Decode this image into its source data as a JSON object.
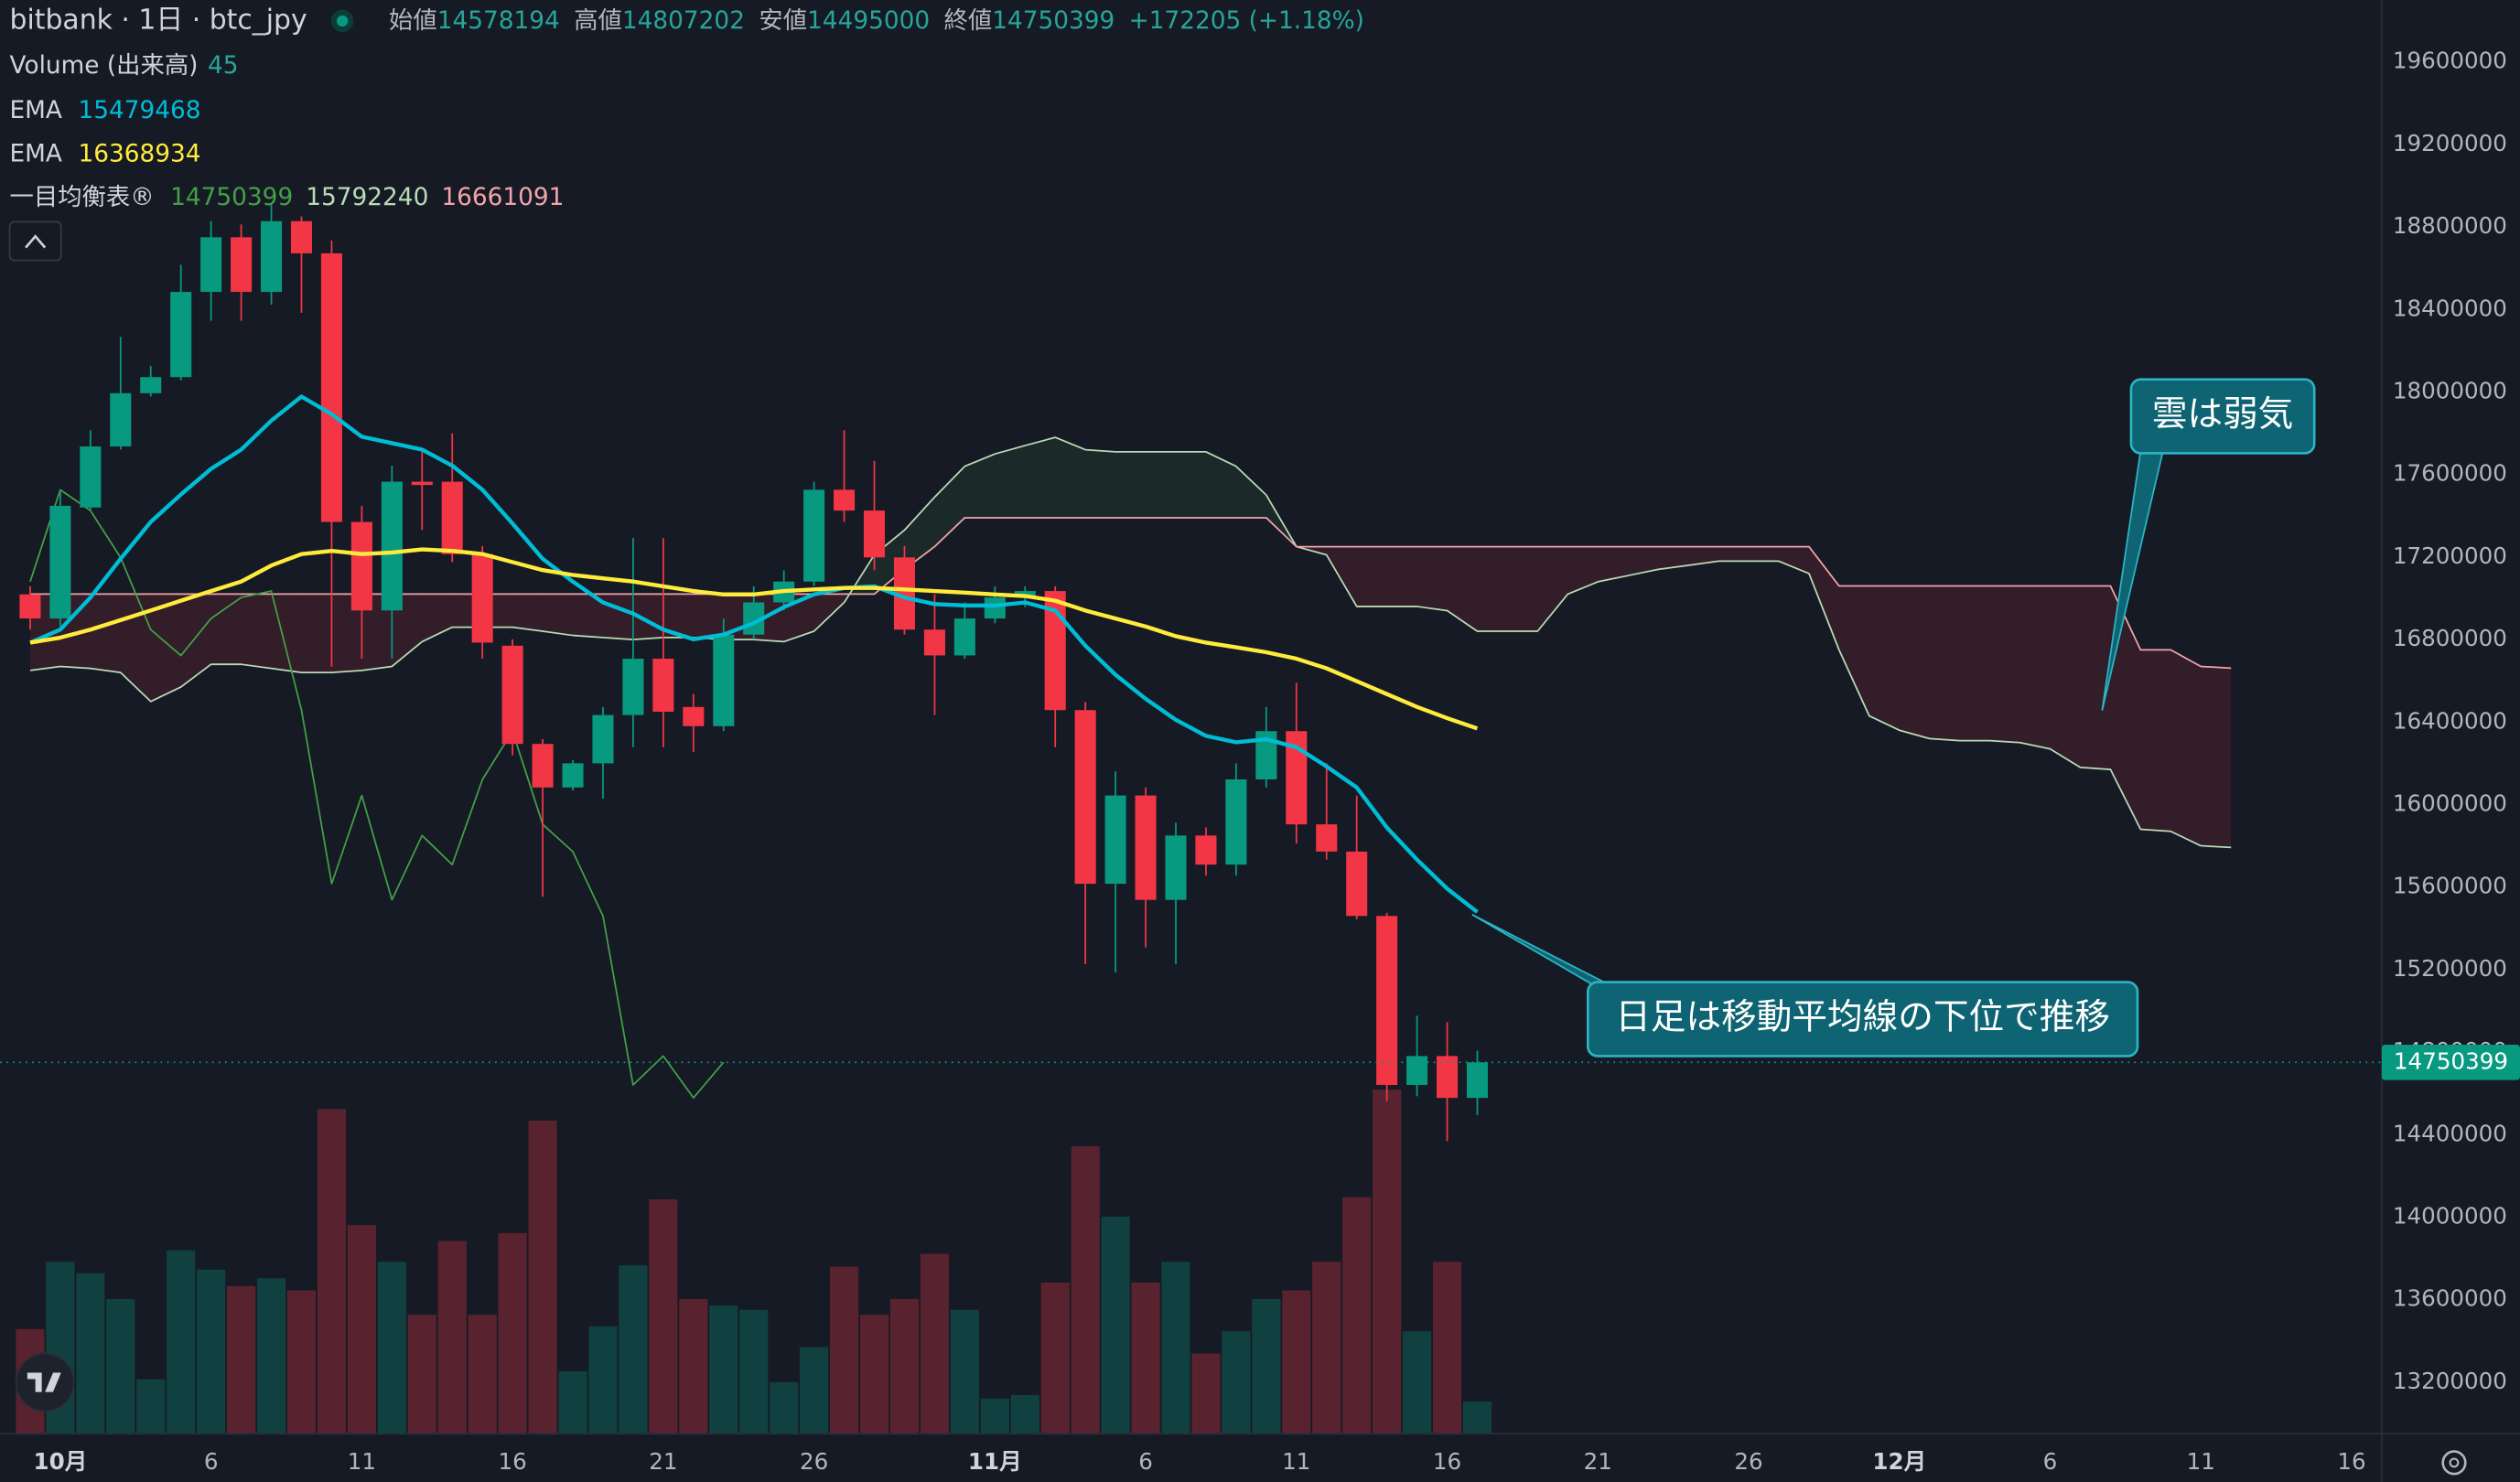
{
  "header": {
    "title": "bitbank · 1日 · btc_jpy",
    "ohlc_labels": [
      "始値",
      "高値",
      "安値",
      "終値"
    ],
    "change": {
      "value": 172205,
      "label": "+172205 (+1.18%)"
    }
  },
  "chart_data": {
    "type": "candlestick",
    "x": [
      "09-30",
      "10-01",
      "10-02",
      "10-03",
      "10-04",
      "10-05",
      "10-06",
      "10-07",
      "10-08",
      "10-09",
      "10-10",
      "10-11",
      "10-12",
      "10-13",
      "10-14",
      "10-15",
      "10-16",
      "10-17",
      "10-18",
      "10-19",
      "10-20",
      "10-21",
      "10-22",
      "10-23",
      "10-24",
      "10-25",
      "10-26",
      "10-27",
      "10-28",
      "10-29",
      "10-30",
      "10-31",
      "11-01",
      "11-02",
      "11-03",
      "11-04",
      "11-05",
      "11-06",
      "11-07",
      "11-08",
      "11-09",
      "11-10",
      "11-11",
      "11-12",
      "11-13",
      "11-14",
      "11-15",
      "11-16",
      "11-17",
      "11-18",
      "11-19",
      "11-20",
      "11-21",
      "11-22",
      "11-23",
      "11-24",
      "11-25",
      "11-26",
      "11-27",
      "11-28",
      "11-29",
      "11-30",
      "12-01",
      "12-02",
      "12-03",
      "12-04",
      "12-05",
      "12-06",
      "12-07",
      "12-08",
      "12-09",
      "12-10",
      "12-11",
      "12-12"
    ],
    "xlim": [
      "09-29",
      "12-17"
    ],
    "xticks": [
      {
        "value": "10-01",
        "label": "10月"
      },
      {
        "value": "10-06",
        "label": "6"
      },
      {
        "value": "10-11",
        "label": "11"
      },
      {
        "value": "10-16",
        "label": "16"
      },
      {
        "value": "10-21",
        "label": "21"
      },
      {
        "value": "10-26",
        "label": "26"
      },
      {
        "value": "11-01",
        "label": "11月"
      },
      {
        "value": "11-06",
        "label": "6"
      },
      {
        "value": "11-11",
        "label": "11"
      },
      {
        "value": "11-16",
        "label": "16"
      },
      {
        "value": "11-21",
        "label": "21"
      },
      {
        "value": "11-26",
        "label": "26"
      },
      {
        "value": "12-01",
        "label": "12月"
      },
      {
        "value": "12-06",
        "label": "6"
      },
      {
        "value": "12-11",
        "label": "11"
      },
      {
        "value": "12-16",
        "label": "16"
      }
    ],
    "ylim": [
      12950000,
      19900000
    ],
    "yticks": [
      13200000,
      13600000,
      14000000,
      14400000,
      14800000,
      15200000,
      15600000,
      16000000,
      16400000,
      16800000,
      17200000,
      17600000,
      18000000,
      18400000,
      18800000,
      19200000,
      19600000
    ],
    "grid": false,
    "colors": {
      "up": "#089981",
      "down": "#f23645"
    },
    "open": [
      17019000,
      16902000,
      17440000,
      17736000,
      17994000,
      18072000,
      18485000,
      18750000,
      18485000,
      18828000,
      18672000,
      17370000,
      16941000,
      17565000,
      17565000,
      17214000,
      16770000,
      16294000,
      16083000,
      16200000,
      16434000,
      16707000,
      16473000,
      16380000,
      16824000,
      16980000,
      17081000,
      17526000,
      17425000,
      17198000,
      16848000,
      16723000,
      16902000,
      17004000,
      17035000,
      16458000,
      15616000,
      16044000,
      15538000,
      15850000,
      15709000,
      16122000,
      16356000,
      15904000,
      15772000,
      15460000,
      14641000,
      14781000,
      14578194,
      null,
      null,
      null,
      null,
      null,
      null,
      null,
      null,
      null,
      null,
      null,
      null,
      null,
      null,
      null,
      null,
      null,
      null,
      null,
      null,
      null,
      null,
      null,
      null,
      null
    ],
    "high": [
      17058000,
      17526000,
      17814000,
      18267000,
      18126000,
      18617000,
      18828000,
      18812000,
      18906000,
      18851000,
      18734000,
      17448000,
      17643000,
      17721000,
      17799000,
      17253000,
      16801000,
      16317000,
      16216000,
      16473000,
      17292000,
      17292000,
      16536000,
      16902000,
      17058000,
      17136000,
      17565000,
      17814000,
      17666000,
      17253000,
      17019000,
      16980000,
      17058000,
      17058000,
      17058000,
      16497000,
      16161000,
      16083000,
      15912000,
      15889000,
      16200000,
      16473000,
      16590000,
      16200000,
      16044000,
      15475000,
      14976000,
      14945000,
      14807202,
      null,
      null,
      null,
      null,
      null,
      null,
      null,
      null,
      null,
      null,
      null,
      null,
      null,
      null,
      null,
      null,
      null,
      null,
      null,
      null,
      null,
      null,
      null,
      null,
      null
    ],
    "low": [
      16848000,
      16863000,
      17425000,
      17721000,
      17978000,
      18056000,
      18345000,
      18345000,
      18423000,
      18384000,
      16668000,
      16707000,
      16707000,
      17331000,
      17175000,
      16707000,
      16239000,
      15553000,
      16068000,
      16029000,
      16278000,
      16278000,
      16255000,
      16356000,
      16801000,
      16941000,
      17058000,
      17370000,
      17136000,
      16824000,
      16434000,
      16707000,
      16879000,
      16957000,
      16278000,
      15226000,
      15187000,
      15307000,
      15226000,
      15655000,
      15655000,
      16083000,
      15811000,
      15733000,
      15444000,
      14563000,
      14586000,
      14368000,
      14495000,
      null,
      null,
      null,
      null,
      null,
      null,
      null,
      null,
      null,
      null,
      null,
      null,
      null,
      null,
      null,
      null,
      null,
      null,
      null,
      null,
      null,
      null,
      null,
      null,
      null
    ],
    "close": [
      16902000,
      17448000,
      17736000,
      17994000,
      18072000,
      18485000,
      18750000,
      18485000,
      18828000,
      18672000,
      17370000,
      16941000,
      17565000,
      17549000,
      17214000,
      16785000,
      16294000,
      16083000,
      16200000,
      16434000,
      16707000,
      16450000,
      16380000,
      16824000,
      16980000,
      17081000,
      17526000,
      17425000,
      17198000,
      16848000,
      16723000,
      16902000,
      17004000,
      17035000,
      16458000,
      15616000,
      16044000,
      15538000,
      15850000,
      15709000,
      16122000,
      16356000,
      15904000,
      15772000,
      15460000,
      14641000,
      14781000,
      14578194,
      14750399,
      null,
      null,
      null,
      null,
      null,
      null,
      null,
      null,
      null,
      null,
      null,
      null,
      null,
      null,
      null,
      null,
      null,
      null,
      null,
      null,
      null,
      null,
      null,
      null,
      null
    ],
    "volume": {
      "name": "Volume (出来高)",
      "ylim": [
        0,
        2000
      ],
      "values": [
        146,
        240,
        224,
        188,
        76,
        256,
        229,
        206,
        217,
        200,
        453,
        291,
        240,
        166,
        269,
        166,
        280,
        437,
        87,
        150,
        235,
        327,
        188,
        179,
        173,
        72,
        121,
        233,
        166,
        188,
        251,
        173,
        49,
        54,
        211,
        401,
        303,
        211,
        240,
        112,
        143,
        188,
        200,
        240,
        330,
        480,
        143,
        240,
        45,
        null,
        null,
        null,
        null,
        null,
        null,
        null,
        null,
        null,
        null,
        null,
        null,
        null,
        null,
        null,
        null,
        null,
        null,
        null,
        null,
        null,
        null,
        null,
        null,
        null
      ]
    },
    "series": [
      {
        "name": "EMA",
        "color": "#00bcd4",
        "values": [
          16785000,
          16848000,
          17004000,
          17191000,
          17370000,
          17503000,
          17627000,
          17721000,
          17861000,
          17978000,
          17892000,
          17783000,
          17752000,
          17721000,
          17643000,
          17526000,
          17362000,
          17191000,
          17081000,
          16980000,
          16926000,
          16848000,
          16801000,
          16824000,
          16879000,
          16957000,
          17019000,
          17050000,
          17058000,
          17004000,
          16972000,
          16965000,
          16965000,
          16980000,
          16941000,
          16770000,
          16629000,
          16512000,
          16411000,
          16333000,
          16302000,
          16317000,
          16278000,
          16185000,
          16083000,
          15889000,
          15733000,
          15592000,
          15479468,
          null,
          null,
          null,
          null,
          null,
          null,
          null,
          null,
          null,
          null,
          null,
          null,
          null,
          null,
          null,
          null,
          null,
          null,
          null,
          null,
          null,
          null,
          null,
          null,
          null
        ]
      },
      {
        "name": "EMA",
        "color": "#ffeb3b",
        "values": [
          16785000,
          16809000,
          16848000,
          16894000,
          16941000,
          16988000,
          17035000,
          17081000,
          17159000,
          17214000,
          17230000,
          17214000,
          17222000,
          17237000,
          17230000,
          17214000,
          17175000,
          17136000,
          17113000,
          17097000,
          17081000,
          17058000,
          17035000,
          17019000,
          17019000,
          17035000,
          17043000,
          17050000,
          17050000,
          17043000,
          17035000,
          17027000,
          17019000,
          17011000,
          16988000,
          16941000,
          16902000,
          16863000,
          16816000,
          16785000,
          16762000,
          16738000,
          16707000,
          16660000,
          16598000,
          16536000,
          16473000,
          16419000,
          16368934,
          null,
          null,
          null,
          null,
          null,
          null,
          null,
          null,
          null,
          null,
          null,
          null,
          null,
          null,
          null,
          null,
          null,
          null,
          null,
          null,
          null,
          null,
          null,
          null,
          null
        ]
      }
    ],
    "ichimoku": {
      "name": "一目均衡表®",
      "lagging": {
        "color": "#43a047",
        "values": [
          17081000,
          17526000,
          17425000,
          17198000,
          16848000,
          16723000,
          16902000,
          17004000,
          17035000,
          16458000,
          15616000,
          16044000,
          15538000,
          15850000,
          15709000,
          16122000,
          16356000,
          15904000,
          15772000,
          15460000,
          14641000,
          14781000,
          14578194,
          14750399,
          null,
          null,
          null,
          null,
          null,
          null,
          null,
          null,
          null,
          null,
          null,
          null,
          null,
          null,
          null,
          null,
          null,
          null,
          null,
          null,
          null,
          null,
          null,
          null,
          null,
          null,
          null,
          null,
          null,
          null,
          null,
          null,
          null,
          null,
          null,
          null,
          null,
          null,
          null,
          null,
          null,
          null,
          null,
          null,
          null,
          null,
          null,
          null,
          null,
          null
        ]
      },
      "span_a": {
        "color": "#b9dcb5",
        "values": [
          16650000,
          16670000,
          16660000,
          16640000,
          16500000,
          16570000,
          16680000,
          16680000,
          16660000,
          16640000,
          16640000,
          16650000,
          16670000,
          16790000,
          16860000,
          16860000,
          16860000,
          16840000,
          16820000,
          16810000,
          16800000,
          16810000,
          16810000,
          16800000,
          16800000,
          16790000,
          16840000,
          16980000,
          17210000,
          17330000,
          17490000,
          17640000,
          17700000,
          17740000,
          17780000,
          17720000,
          17710000,
          17710000,
          17710000,
          17710000,
          17640000,
          17500000,
          17250000,
          17210000,
          16960000,
          16960000,
          16960000,
          16940000,
          16840000,
          16840000,
          16840000,
          17020000,
          17080000,
          17110000,
          17140000,
          17160000,
          17180000,
          17180000,
          17180000,
          17120000,
          16750000,
          16430000,
          16360000,
          16320000,
          16310000,
          16310000,
          16300000,
          16270000,
          16180000,
          16170000,
          15880000,
          15870000,
          15800000,
          15792240
        ]
      },
      "span_b": {
        "color": "#f2a5a9",
        "values": [
          17020000,
          17020000,
          17020000,
          17020000,
          17020000,
          17020000,
          17020000,
          17020000,
          17020000,
          17020000,
          17020000,
          17020000,
          17020000,
          17020000,
          17020000,
          17020000,
          17020000,
          17020000,
          17020000,
          17020000,
          17020000,
          17020000,
          17020000,
          17020000,
          17020000,
          17020000,
          17020000,
          17020000,
          17020000,
          17140000,
          17250000,
          17390000,
          17390000,
          17390000,
          17390000,
          17390000,
          17390000,
          17390000,
          17390000,
          17390000,
          17390000,
          17390000,
          17250000,
          17250000,
          17250000,
          17250000,
          17250000,
          17250000,
          17250000,
          17250000,
          17250000,
          17250000,
          17250000,
          17250000,
          17250000,
          17250000,
          17250000,
          17250000,
          17250000,
          17250000,
          17060000,
          17060000,
          17060000,
          17060000,
          17060000,
          17060000,
          17060000,
          17060000,
          17060000,
          17060000,
          16750000,
          16750000,
          16670000,
          16661091
        ]
      }
    },
    "annotations": [
      "雲は弱気",
      "日足は移動平均線の下位で推移"
    ]
  }
}
